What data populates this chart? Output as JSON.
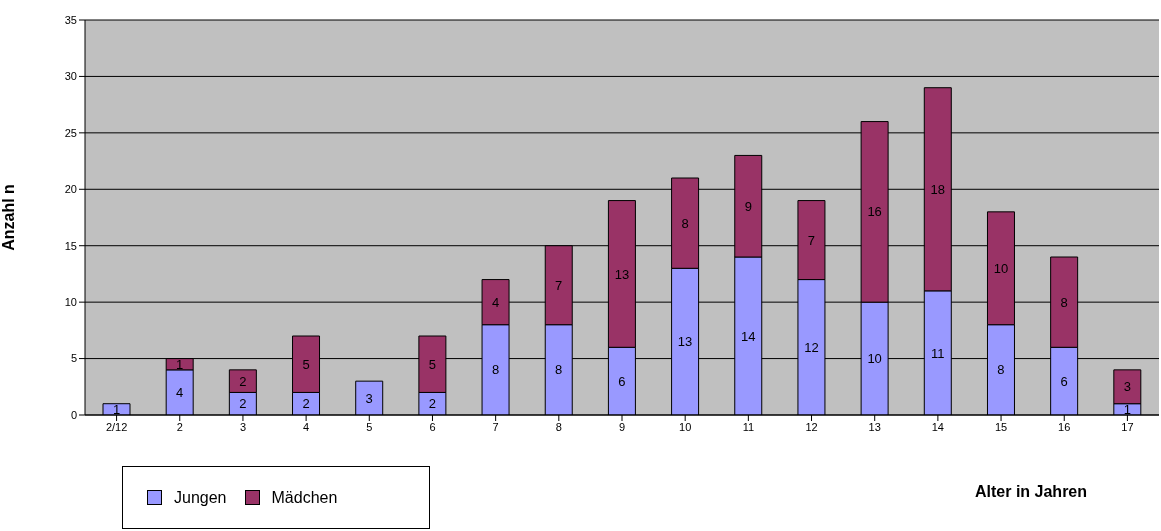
{
  "chart_data": {
    "type": "bar",
    "stacked": true,
    "xlabel": "Alter in Jahren",
    "ylabel": "Anzahl n",
    "categories": [
      "2/12",
      "2",
      "3",
      "4",
      "5",
      "6",
      "7",
      "8",
      "9",
      "10",
      "11",
      "12",
      "13",
      "14",
      "15",
      "16",
      "17"
    ],
    "series": [
      {
        "name": "Jungen",
        "color": "#9999ff",
        "values": [
          1,
          4,
          2,
          2,
          3,
          2,
          8,
          8,
          6,
          13,
          14,
          12,
          10,
          11,
          8,
          6,
          1
        ]
      },
      {
        "name": "Mädchen",
        "color": "#993366",
        "values": [
          null,
          1,
          2,
          5,
          null,
          5,
          4,
          7,
          13,
          8,
          9,
          7,
          16,
          18,
          10,
          8,
          3
        ]
      }
    ],
    "ylim": [
      0,
      35
    ],
    "yticks": [
      0,
      5,
      10,
      15,
      20,
      25,
      30,
      35
    ],
    "grid": "y",
    "legend": "bottom left",
    "data_labels": true
  }
}
